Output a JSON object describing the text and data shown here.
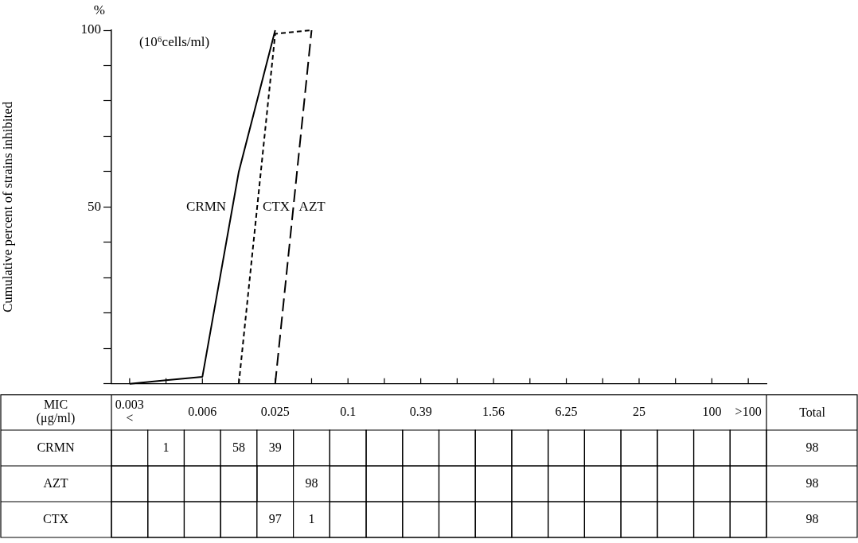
{
  "chart_data": [
    {
      "type": "line",
      "ylabel": "Cumulative percent of strains inhibited",
      "categories": [
        null,
        null,
        null,
        null,
        null,
        null,
        null,
        null,
        null,
        null,
        null,
        null,
        null,
        null,
        null,
        null,
        null,
        null
      ],
      "series": [
        {
          "name": "CRMN",
          "color": "#000000",
          "line_style": "solid",
          "values": [
            0,
            1,
            2,
            60,
            100,
            null,
            null,
            null,
            null,
            null,
            null,
            null,
            null,
            null,
            null,
            null,
            null,
            null
          ]
        },
        {
          "name": "AZT",
          "color": "#000000",
          "line_style": "dashed",
          "values": [
            null,
            null,
            null,
            null,
            0,
            100,
            null,
            null,
            null,
            null,
            null,
            null,
            null,
            null,
            null,
            null,
            null,
            null
          ]
        },
        {
          "name": "CTX",
          "color": "#000000",
          "line_style": "dotted",
          "values": [
            null,
            null,
            null,
            0,
            99,
            100,
            null,
            null,
            null,
            null,
            null,
            null,
            null,
            null,
            null,
            null,
            null,
            null
          ]
        }
      ],
      "ylim": [
        0,
        100
      ],
      "yticks": [
        {
          "value": 0,
          "label": null
        },
        {
          "value": 10,
          "label": null
        },
        {
          "value": 20,
          "label": null
        },
        {
          "value": 30,
          "label": null
        },
        {
          "value": 40,
          "label": null
        },
        50,
        {
          "value": 60,
          "label": null
        },
        {
          "value": 70,
          "label": null
        },
        {
          "value": 80,
          "label": null
        },
        {
          "value": 90,
          "label": null
        },
        100
      ],
      "tick_labels": "y",
      "grid": false,
      "legend": false,
      "marker": "none",
      "annotations": [
        "%",
        "(10⁶cells/ml)"
      ]
    },
    {
      "type": "heatmap",
      "xlabel": "MIC (μg/ml)",
      "categories": [
        "0.003 <",
        null,
        "0.006",
        null,
        "0.025",
        null,
        "0.1",
        null,
        "0.39",
        null,
        "1.56",
        null,
        "6.25",
        null,
        "25",
        null,
        "100",
        ">100"
      ],
      "y_categories": [
        "CRMN",
        "AZT",
        "CTX"
      ],
      "y2label": "Total",
      "y2_categories": [
        "98",
        "98",
        "98"
      ],
      "data_labels": true,
      "cells": [
        [
          null,
          1,
          null,
          58,
          39,
          null,
          null,
          null,
          null,
          null,
          null,
          null,
          null,
          null,
          null,
          null,
          null,
          null
        ],
        [
          null,
          null,
          null,
          null,
          null,
          98,
          null,
          null,
          null,
          null,
          null,
          null,
          null,
          null,
          null,
          null,
          null,
          null
        ],
        [
          null,
          null,
          null,
          null,
          97,
          1,
          null,
          null,
          null,
          null,
          null,
          null,
          null,
          null,
          null,
          null,
          null,
          null
        ]
      ]
    }
  ]
}
